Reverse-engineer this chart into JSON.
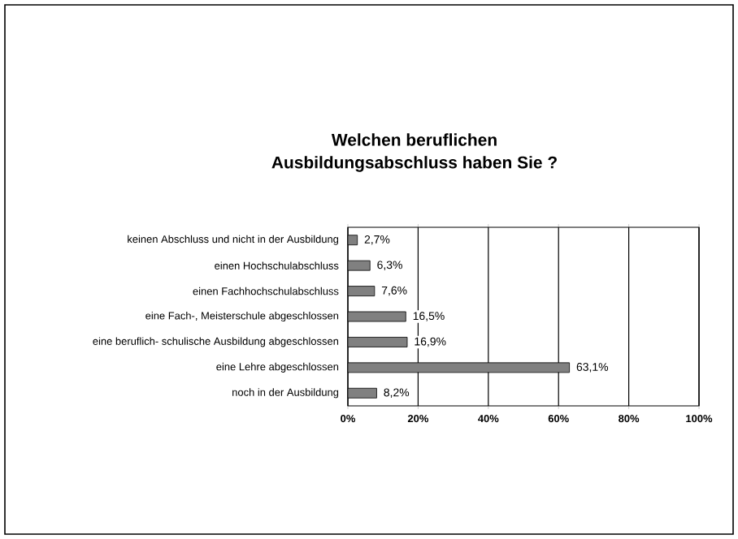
{
  "chart_data": {
    "type": "bar",
    "orientation": "horizontal",
    "title": "Welchen beruflichen\nAusbildungsabschluss haben Sie ?",
    "categories": [
      "keinen Abschluss und nicht in der Ausbildung",
      "einen Hochschulabschluss",
      "einen Fachhochschulabschluss",
      "eine Fach-, Meisterschule abgeschlossen",
      "eine beruflich- schulische Ausbildung abgeschlossen",
      "eine Lehre abgeschlossen",
      "noch in der Ausbildung"
    ],
    "values": [
      2.7,
      6.3,
      7.6,
      16.5,
      16.9,
      63.1,
      8.2
    ],
    "value_labels": [
      "2,7%",
      "6,3%",
      "7,6%",
      "16,5%",
      "16,9%",
      "63,1%",
      "8,2%"
    ],
    "color": "#808080",
    "xlim": [
      0,
      100
    ],
    "xticks": [
      {
        "value": 0,
        "label": "0%"
      },
      {
        "value": 20,
        "label": "20%"
      },
      {
        "value": 40,
        "label": "40%"
      },
      {
        "value": 60,
        "label": "60%"
      },
      {
        "value": 80,
        "label": "80%"
      },
      {
        "value": 100,
        "label": "100%"
      }
    ],
    "grid": "x"
  }
}
